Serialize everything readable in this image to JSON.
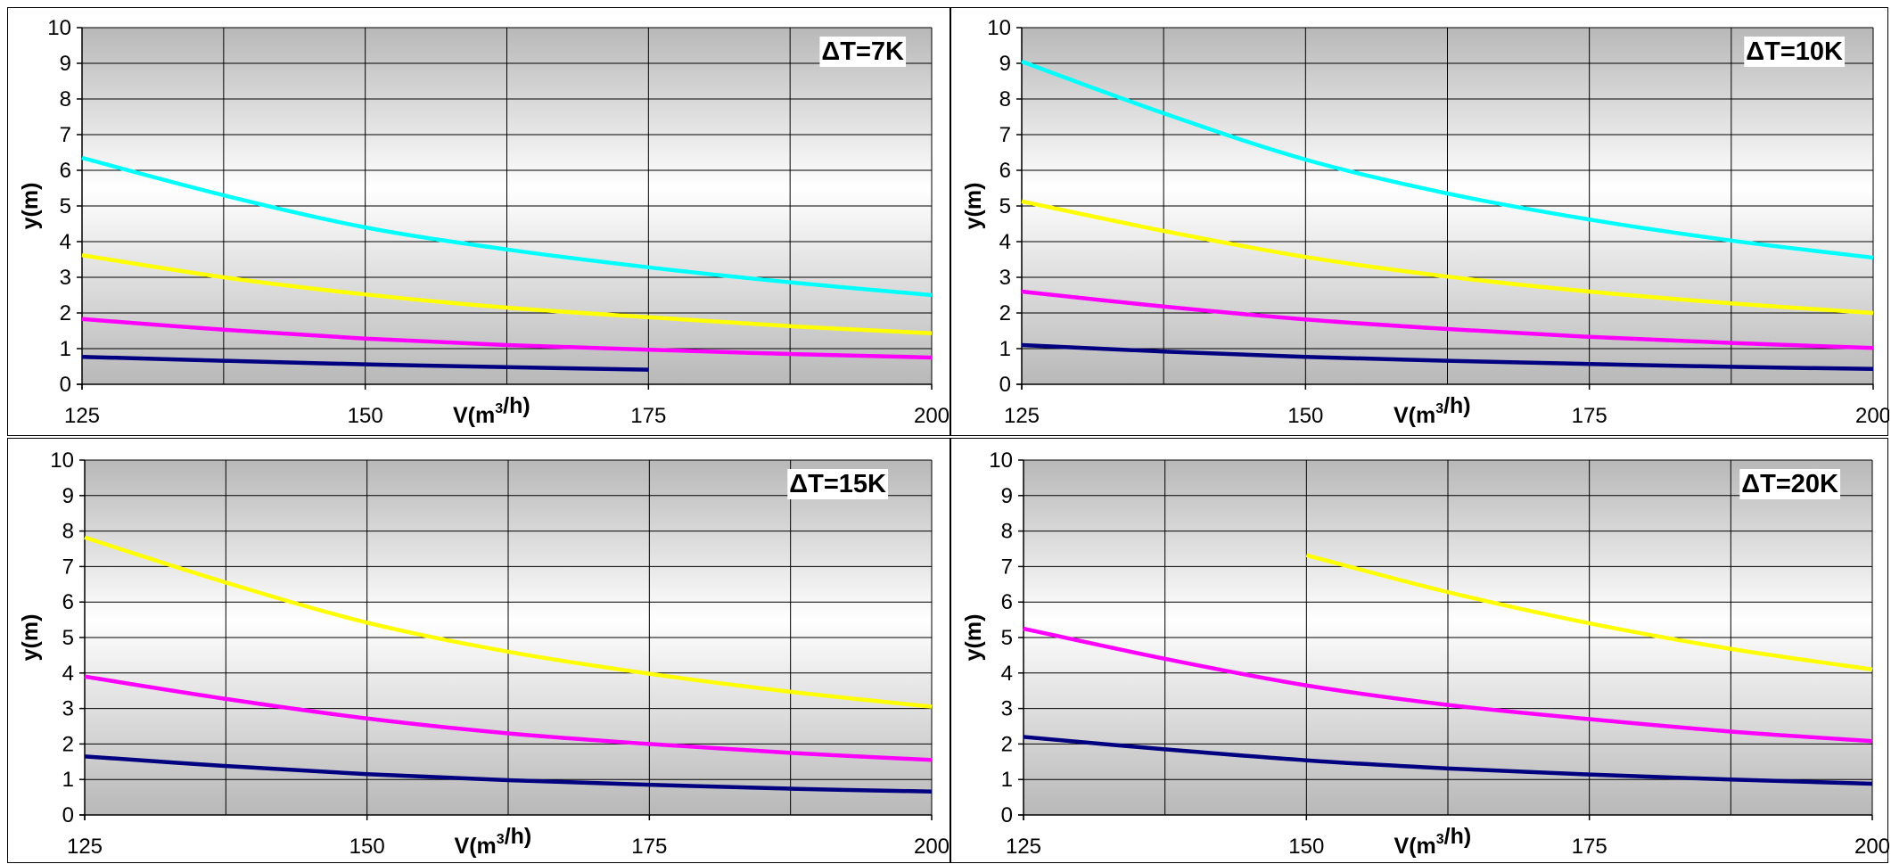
{
  "chart_data": [
    {
      "type": "line",
      "title": "ΔT=7K",
      "xlabel": "V(m³/h)",
      "ylabel": "y(m)",
      "xlim": [
        125,
        200
      ],
      "ylim": [
        0,
        10
      ],
      "xticks": [
        "125",
        "150",
        "175",
        "200"
      ],
      "yticks": [
        "0",
        "1",
        "2",
        "3",
        "4",
        "5",
        "6",
        "7",
        "8",
        "9",
        "10"
      ],
      "grid": true,
      "series": [
        {
          "color": "#00FFFF",
          "x": [
            125,
            137.5,
            150,
            162.5,
            175,
            187.5,
            200
          ],
          "y": [
            6.35,
            5.3,
            4.4,
            3.78,
            3.28,
            2.86,
            2.5
          ]
        },
        {
          "color": "#FFFF00",
          "x": [
            125,
            137.5,
            150,
            162.5,
            175,
            187.5,
            200
          ],
          "y": [
            3.62,
            3.0,
            2.52,
            2.15,
            1.88,
            1.63,
            1.43
          ]
        },
        {
          "color": "#FF00FF",
          "x": [
            125,
            137.5,
            150,
            162.5,
            175,
            187.5,
            200
          ],
          "y": [
            1.83,
            1.53,
            1.28,
            1.1,
            0.97,
            0.85,
            0.75
          ]
        },
        {
          "color": "#000080",
          "x": [
            125,
            137.5,
            150,
            162.5,
            175
          ],
          "y": [
            0.77,
            0.66,
            0.56,
            0.48,
            0.41
          ]
        }
      ]
    },
    {
      "type": "line",
      "title": "ΔT=10K",
      "xlabel": "V(m³/h)",
      "ylabel": "y(m)",
      "xlim": [
        125,
        200
      ],
      "ylim": [
        0,
        10
      ],
      "xticks": [
        "125",
        "150",
        "175",
        "200"
      ],
      "yticks": [
        "0",
        "1",
        "2",
        "3",
        "4",
        "5",
        "6",
        "7",
        "8",
        "9",
        "10"
      ],
      "grid": true,
      "series": [
        {
          "color": "#00FFFF",
          "x": [
            125,
            137.5,
            150,
            162.5,
            175,
            187.5,
            200
          ],
          "y": [
            9.05,
            7.6,
            6.3,
            5.35,
            4.62,
            4.03,
            3.55
          ]
        },
        {
          "color": "#FFFF00",
          "x": [
            125,
            137.5,
            150,
            162.5,
            175,
            187.5,
            200
          ],
          "y": [
            5.13,
            4.3,
            3.57,
            3.02,
            2.6,
            2.27,
            2.0
          ]
        },
        {
          "color": "#FF00FF",
          "x": [
            125,
            137.5,
            150,
            162.5,
            175,
            187.5,
            200
          ],
          "y": [
            2.6,
            2.18,
            1.82,
            1.55,
            1.33,
            1.16,
            1.02
          ]
        },
        {
          "color": "#000080",
          "x": [
            125,
            137.5,
            150,
            162.5,
            175,
            187.5,
            200
          ],
          "y": [
            1.1,
            0.92,
            0.77,
            0.66,
            0.57,
            0.49,
            0.43
          ]
        }
      ]
    },
    {
      "type": "line",
      "title": "ΔT=15K",
      "xlabel": "V(m³/h)",
      "ylabel": "y(m)",
      "xlim": [
        125,
        200
      ],
      "ylim": [
        0,
        10
      ],
      "xticks": [
        "125",
        "150",
        "175",
        "200"
      ],
      "yticks": [
        "0",
        "1",
        "2",
        "3",
        "4",
        "5",
        "6",
        "7",
        "8",
        "9",
        "10"
      ],
      "grid": true,
      "series": [
        {
          "color": "#FFFF00",
          "x": [
            125,
            137.5,
            150,
            162.5,
            175,
            187.5,
            200
          ],
          "y": [
            7.82,
            6.55,
            5.42,
            4.6,
            3.98,
            3.47,
            3.05
          ]
        },
        {
          "color": "#FF00FF",
          "x": [
            125,
            137.5,
            150,
            162.5,
            175,
            187.5,
            200
          ],
          "y": [
            3.9,
            3.27,
            2.72,
            2.3,
            2.0,
            1.75,
            1.55
          ]
        },
        {
          "color": "#000080",
          "x": [
            125,
            137.5,
            150,
            162.5,
            175,
            187.5,
            200
          ],
          "y": [
            1.65,
            1.38,
            1.15,
            0.98,
            0.85,
            0.74,
            0.66
          ]
        }
      ]
    },
    {
      "type": "line",
      "title": "ΔT=20K",
      "xlabel": "V(m³/h)",
      "ylabel": "y(m)",
      "xlim": [
        125,
        200
      ],
      "ylim": [
        0,
        10
      ],
      "xticks": [
        "125",
        "150",
        "175",
        "200"
      ],
      "yticks": [
        "0",
        "1",
        "2",
        "3",
        "4",
        "5",
        "6",
        "7",
        "8",
        "9",
        "10"
      ],
      "grid": true,
      "series": [
        {
          "color": "#FFFF00",
          "x": [
            150,
            162.5,
            175,
            187.5,
            200
          ],
          "y": [
            7.32,
            6.28,
            5.4,
            4.68,
            4.1
          ]
        },
        {
          "color": "#FF00FF",
          "x": [
            125,
            137.5,
            150,
            162.5,
            175,
            187.5,
            200
          ],
          "y": [
            5.25,
            4.4,
            3.65,
            3.1,
            2.7,
            2.35,
            2.08
          ]
        },
        {
          "color": "#000080",
          "x": [
            125,
            137.5,
            150,
            162.5,
            175,
            187.5,
            200
          ],
          "y": [
            2.2,
            1.85,
            1.54,
            1.31,
            1.14,
            1.0,
            0.88
          ]
        }
      ]
    }
  ]
}
